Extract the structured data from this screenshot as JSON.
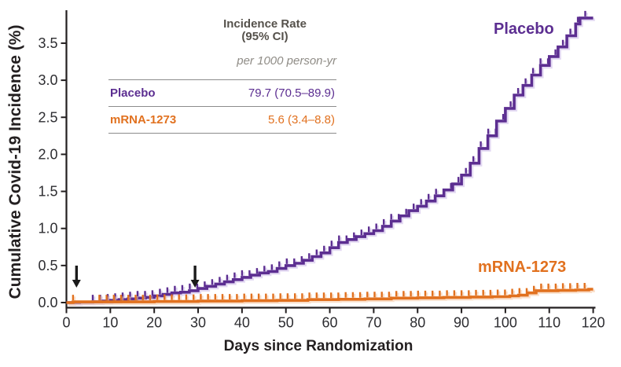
{
  "colors": {
    "placebo": "#5c2e91",
    "mrna": "#e1711f",
    "placebo_shadow": "#c9b4e6",
    "mrna_shadow": "#f6c39b",
    "axis": "#231f20",
    "tick_text": "#2d2d31",
    "table_rule": "#8c8c8c",
    "header_text": "#55514b",
    "subheader_text": "#8f8c86",
    "arrow": "#1a1a1a"
  },
  "table": {
    "header_line1": "Incidence Rate",
    "header_line2": "(95% CI)",
    "subheader": "per 1000 person-yr",
    "rows": [
      {
        "label": "Placebo",
        "value": "79.7 (70.5–89.9)",
        "color": "#5c2e91"
      },
      {
        "label": "mRNA-1273",
        "value": "5.6 (3.4–8.8)",
        "color": "#e1711f"
      }
    ]
  },
  "chart_data": {
    "type": "line",
    "step": true,
    "title": "",
    "xlabel": "Days since Randomization",
    "ylabel": "Cumulative Covid-19 Incidence (%)",
    "xlim": [
      0,
      120
    ],
    "ylim": [
      0,
      3.9
    ],
    "x_ticks": [
      0,
      10,
      20,
      30,
      40,
      50,
      60,
      70,
      80,
      90,
      100,
      110,
      120
    ],
    "y_tick_labels": [
      "0.0",
      "0.5",
      "1.0",
      "1.5",
      "2.0",
      "2.5",
      "3.0",
      "3.5"
    ],
    "grid": false,
    "legend_position": "table-top-left, inline curve labels",
    "dose_arrows": {
      "days": [
        2.3,
        29.3
      ],
      "symbol": "down-arrow"
    },
    "series": [
      {
        "id": "placebo",
        "name": "Placebo",
        "color": "#5c2e91",
        "shadow": "#c9b4e6",
        "censor_ticks": {
          "start": 6,
          "end": 119.6,
          "step": 1.7
        },
        "censor_extra": [],
        "points": [
          [
            0,
            0
          ],
          [
            3,
            0.005
          ],
          [
            6,
            0.01
          ],
          [
            8,
            0.02
          ],
          [
            10,
            0.03
          ],
          [
            12,
            0.04
          ],
          [
            14,
            0.05
          ],
          [
            16,
            0.06
          ],
          [
            18,
            0.07
          ],
          [
            20,
            0.09
          ],
          [
            22,
            0.11
          ],
          [
            24,
            0.13
          ],
          [
            26,
            0.14
          ],
          [
            28,
            0.16
          ],
          [
            30,
            0.19
          ],
          [
            32,
            0.22
          ],
          [
            34,
            0.25
          ],
          [
            36,
            0.28
          ],
          [
            38,
            0.31
          ],
          [
            40,
            0.34
          ],
          [
            42,
            0.37
          ],
          [
            44,
            0.4
          ],
          [
            46,
            0.42
          ],
          [
            48,
            0.46
          ],
          [
            50,
            0.5
          ],
          [
            52,
            0.53
          ],
          [
            54,
            0.57
          ],
          [
            56,
            0.62
          ],
          [
            58,
            0.67
          ],
          [
            60,
            0.74
          ],
          [
            62,
            0.81
          ],
          [
            64,
            0.85
          ],
          [
            66,
            0.89
          ],
          [
            68,
            0.93
          ],
          [
            70,
            0.97
          ],
          [
            72,
            1.03
          ],
          [
            74,
            1.1
          ],
          [
            76,
            1.17
          ],
          [
            78,
            1.24
          ],
          [
            80,
            1.3
          ],
          [
            82,
            1.37
          ],
          [
            84,
            1.44
          ],
          [
            86,
            1.52
          ],
          [
            88,
            1.6
          ],
          [
            90,
            1.72
          ],
          [
            92,
            1.88
          ],
          [
            94,
            2.08
          ],
          [
            96,
            2.25
          ],
          [
            98,
            2.45
          ],
          [
            100,
            2.62
          ],
          [
            102,
            2.8
          ],
          [
            104,
            2.93
          ],
          [
            106,
            3.07
          ],
          [
            108,
            3.2
          ],
          [
            110,
            3.32
          ],
          [
            112,
            3.45
          ],
          [
            114,
            3.6
          ],
          [
            116,
            3.76
          ],
          [
            117,
            3.84
          ],
          [
            120,
            3.84
          ]
        ]
      },
      {
        "id": "mrna",
        "name": "mRNA-1273",
        "color": "#e1711f",
        "shadow": "#f6c39b",
        "censor_ticks": {
          "start": 7.5,
          "end": 119.6,
          "step": 1.65
        },
        "censor_extra": [
          1.5
        ],
        "points": [
          [
            0,
            0
          ],
          [
            1.5,
            0.01
          ],
          [
            20,
            0.015
          ],
          [
            30,
            0.02
          ],
          [
            40,
            0.025
          ],
          [
            48,
            0.03
          ],
          [
            55,
            0.04
          ],
          [
            62,
            0.045
          ],
          [
            68,
            0.05
          ],
          [
            74,
            0.06
          ],
          [
            80,
            0.065
          ],
          [
            86,
            0.07
          ],
          [
            92,
            0.075
          ],
          [
            97,
            0.08
          ],
          [
            101,
            0.09
          ],
          [
            103,
            0.1
          ],
          [
            105,
            0.13
          ],
          [
            107,
            0.16
          ],
          [
            112,
            0.165
          ],
          [
            116,
            0.17
          ],
          [
            119,
            0.18
          ],
          [
            120,
            0.18
          ]
        ]
      }
    ]
  }
}
